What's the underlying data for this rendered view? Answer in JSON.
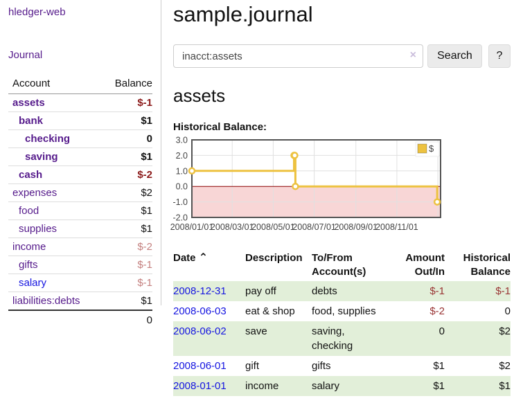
{
  "colors": {
    "link_purple": "#551a8b",
    "link_blue": "#1414e0",
    "neg_strong": "#8b1a1a",
    "neg_medium": "#993333",
    "neg_light": "#c4807f",
    "row_green": "#e2efd9",
    "chart_yellow": "#edc240",
    "chart_negative_fill": "#f8d6d6",
    "chart_zero_line": "#8b0000",
    "chart_grid": "#e0e0e0",
    "chart_border": "#545454",
    "axis_text": "#444444"
  },
  "sidebar": {
    "app_title": "hledger-web",
    "nav": {
      "journal_label": "Journal"
    },
    "table": {
      "account_header": "Account",
      "balance_header": "Balance"
    },
    "accounts": [
      {
        "name": "assets",
        "balance": "$-1",
        "level": 1,
        "bold": true,
        "balance_color": "neg_strong"
      },
      {
        "name": "bank",
        "balance": "$1",
        "level": 2,
        "bold": true,
        "balance_color": null
      },
      {
        "name": "checking",
        "balance": "0",
        "level": 3,
        "bold": true,
        "balance_color": null
      },
      {
        "name": "saving",
        "balance": "$1",
        "level": 3,
        "bold": true,
        "balance_color": null
      },
      {
        "name": "cash",
        "balance": "$-2",
        "level": 2,
        "bold": true,
        "balance_color": "neg_strong"
      },
      {
        "name": "expenses",
        "balance": "$2",
        "level": 1,
        "bold": false,
        "balance_color": null
      },
      {
        "name": "food",
        "balance": "$1",
        "level": 2,
        "bold": false,
        "balance_color": null
      },
      {
        "name": "supplies",
        "balance": "$1",
        "level": 2,
        "bold": false,
        "balance_color": null
      },
      {
        "name": "income",
        "balance": "$-2",
        "level": 1,
        "bold": false,
        "balance_color": "neg_light"
      },
      {
        "name": "gifts",
        "balance": "$-1",
        "level": 2,
        "bold": false,
        "balance_color": "neg_light"
      },
      {
        "name": "salary",
        "balance": "$-1",
        "level": 2,
        "bold": false,
        "balance_color": "neg_light",
        "link": "blue"
      },
      {
        "name": "liabilities:debts",
        "balance": "$1",
        "level": 1,
        "bold": false,
        "balance_color": null
      }
    ],
    "total": "0"
  },
  "main": {
    "title": "sample.journal",
    "search": {
      "value": "inacct:assets",
      "clear_icon": "×",
      "search_label": "Search",
      "help_label": "?"
    },
    "account_heading": "assets",
    "chart_title": "Historical Balance:"
  },
  "chart_data": {
    "type": "line",
    "title": "Historical Balance:",
    "step": true,
    "series": [
      {
        "name": "$",
        "color": "#edc240",
        "points": [
          {
            "date": "2008-01-01",
            "day": 0,
            "value": 1
          },
          {
            "date": "2008-06-01",
            "day": 152,
            "value": 2
          },
          {
            "date": "2008-06-02",
            "day": 153,
            "value": 2
          },
          {
            "date": "2008-06-03",
            "day": 154,
            "value": 0
          },
          {
            "date": "2008-12-31",
            "day": 365,
            "value": -1
          }
        ]
      }
    ],
    "x_ticks": [
      {
        "label": "2008/01/01",
        "day": 0
      },
      {
        "label": "2008/03/01",
        "day": 60
      },
      {
        "label": "2008/05/01",
        "day": 121
      },
      {
        "label": "2008/07/01",
        "day": 182
      },
      {
        "label": "2008/09/01",
        "day": 244
      },
      {
        "label": "2008/11/01",
        "day": 305
      }
    ],
    "x_grid_days": [
      60,
      121,
      182,
      244,
      305,
      366
    ],
    "xlim_days": [
      0,
      370
    ],
    "y_ticks": [
      "3.0",
      "2.0",
      "1.0",
      "0.0",
      "-1.0",
      "-2.0"
    ],
    "ylim": [
      -2,
      3
    ],
    "grid": true,
    "legend": {
      "label": "$",
      "position": "top-right"
    }
  },
  "transactions": {
    "sort_indicator": "⌃",
    "headers": [
      {
        "label": "Date"
      },
      {
        "label": "Description"
      },
      {
        "label": "To/From Account(s)"
      },
      {
        "label": "Amount Out/In",
        "align": "right"
      },
      {
        "label": "Historical Balance",
        "align": "right"
      }
    ],
    "rows": [
      {
        "date": "2008-12-31",
        "description": "pay off",
        "accounts": "debts",
        "amount": "$-1",
        "amount_negative": true,
        "balance": "$-1",
        "balance_negative": true
      },
      {
        "date": "2008-06-03",
        "description": "eat & shop",
        "accounts": "food, supplies",
        "amount": "$-2",
        "amount_negative": true,
        "balance": "0",
        "balance_negative": false
      },
      {
        "date": "2008-06-02",
        "description": "save",
        "accounts": "saving, checking",
        "amount": "0",
        "amount_negative": false,
        "balance": "$2",
        "balance_negative": false
      },
      {
        "date": "2008-06-01",
        "description": "gift",
        "accounts": "gifts",
        "amount": "$1",
        "amount_negative": false,
        "balance": "$2",
        "balance_negative": false
      },
      {
        "date": "2008-01-01",
        "description": "income",
        "accounts": "salary",
        "amount": "$1",
        "amount_negative": false,
        "balance": "$1",
        "balance_negative": false
      }
    ]
  }
}
